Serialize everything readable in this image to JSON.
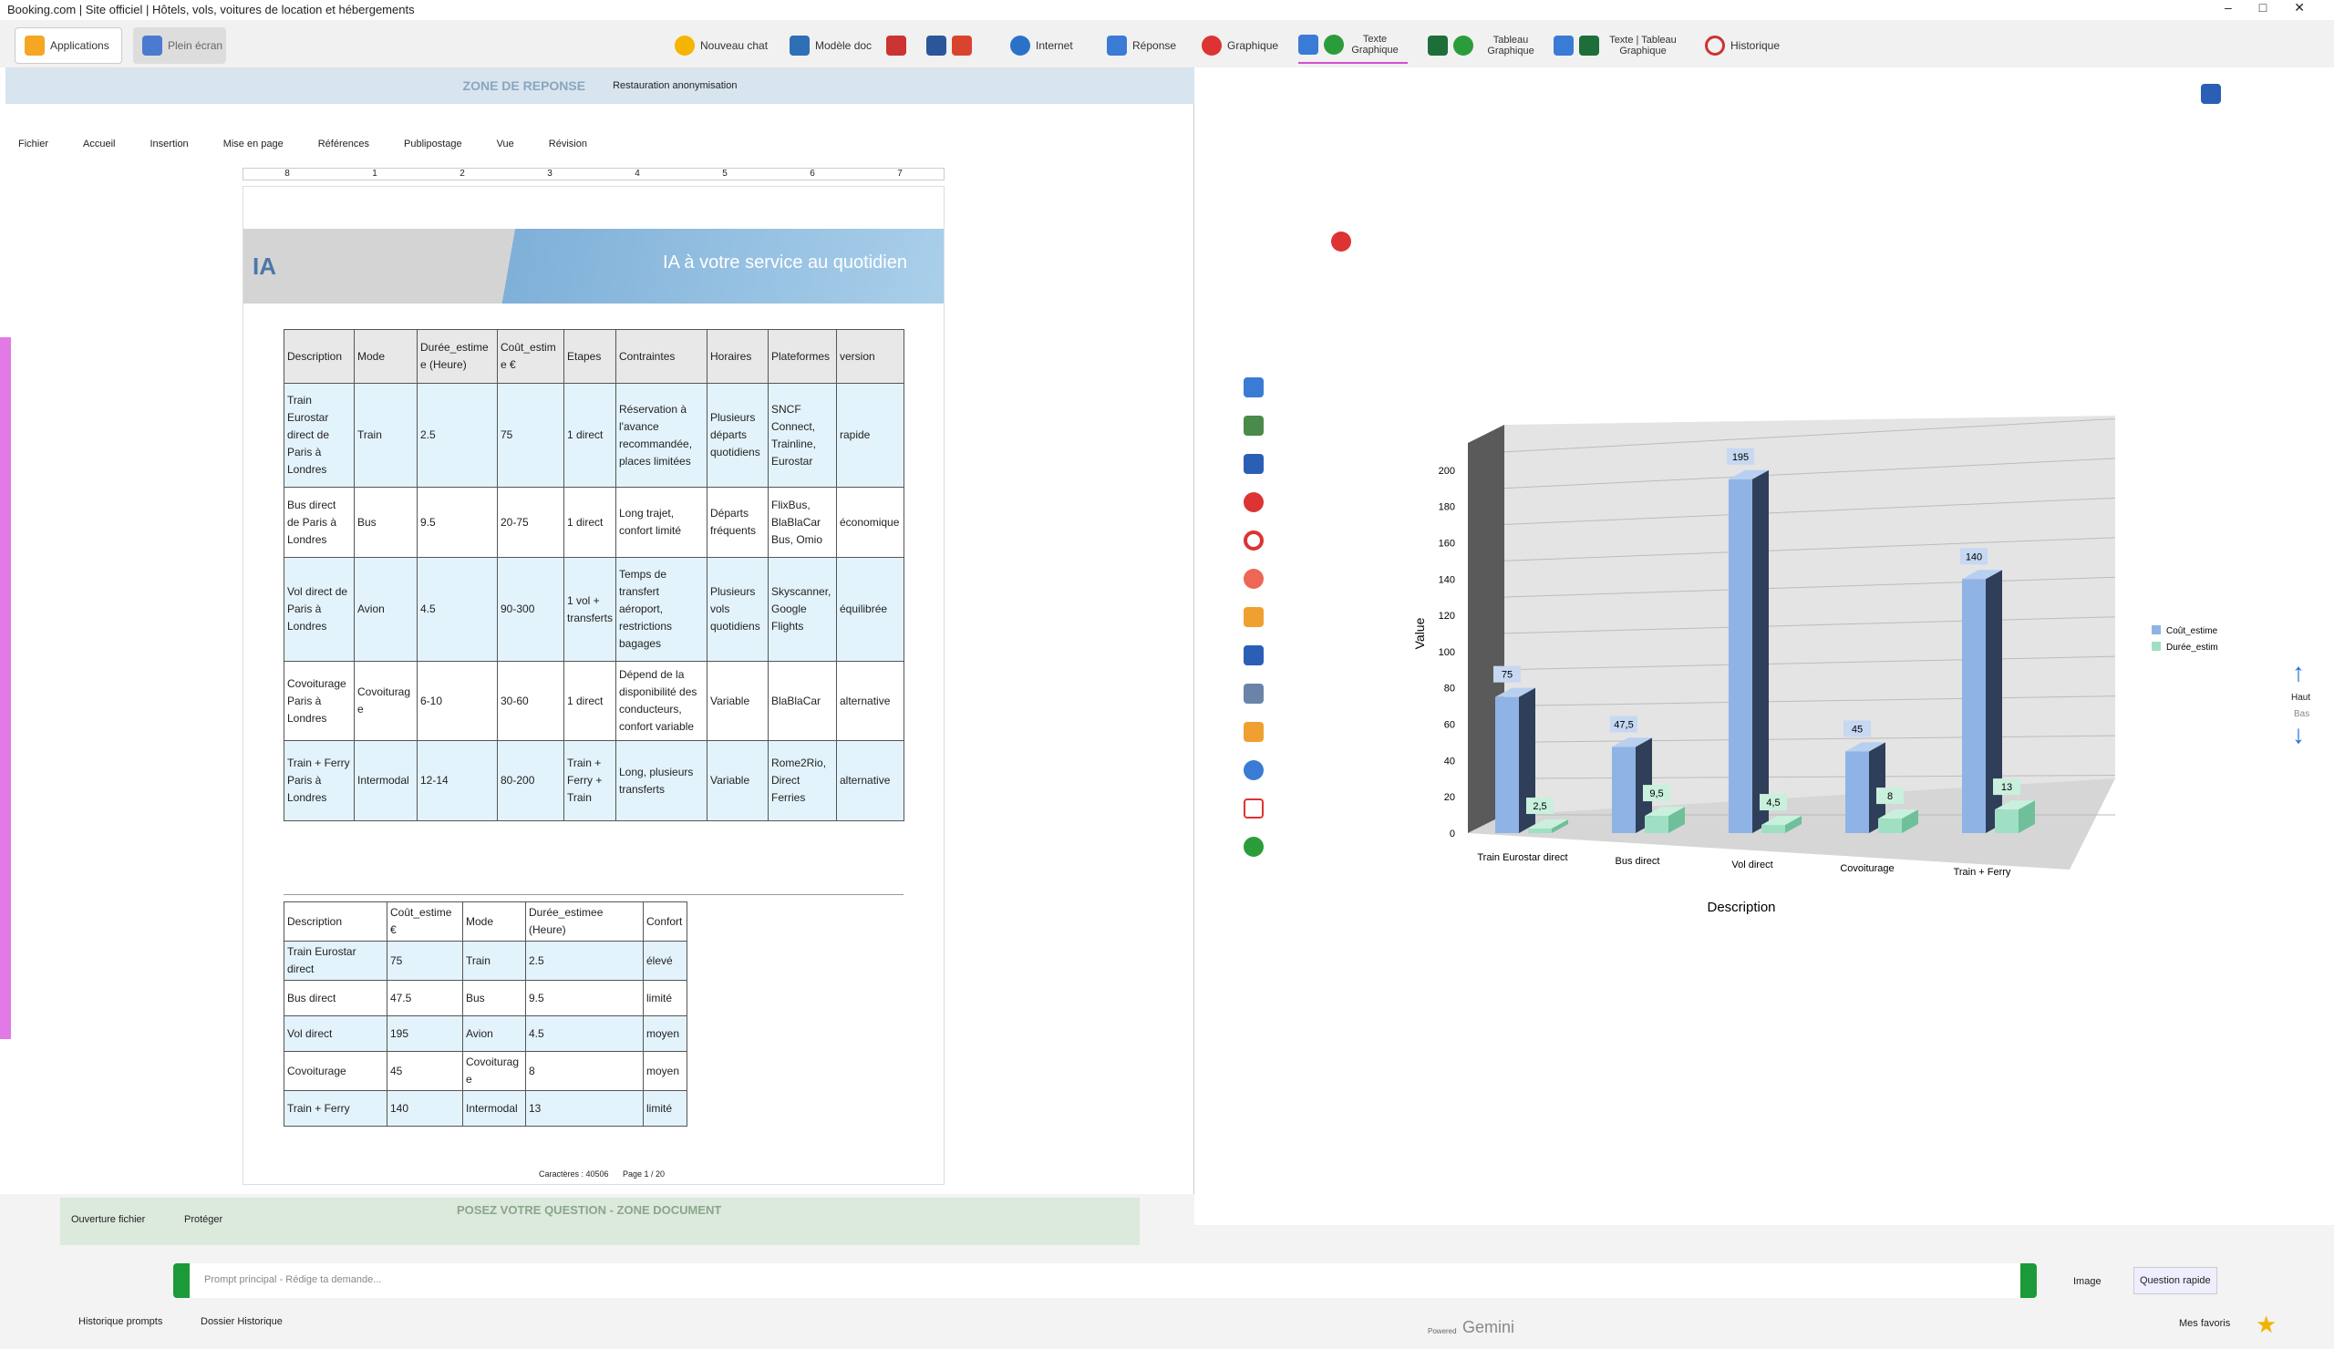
{
  "window_title": "Booking.com | Site officiel | Hôtels, vols, voitures de location et hébergements",
  "toolbar": [
    "Applications",
    "Plein écran",
    "Nouveau chat",
    "Modèle doc",
    "Internet",
    "Réponse",
    "Graphique",
    "Texte Graphique",
    "Tableau Graphique",
    "Texte | Tableau Graphique",
    "Historique"
  ],
  "response_zone": {
    "title": "ZONE DE REPONSE",
    "restore": "Restauration anonymisation"
  },
  "menu": [
    "Fichier",
    "Accueil",
    "Insertion",
    "Mise en page",
    "Références",
    "Publipostage",
    "Vue",
    "Révision"
  ],
  "ruler": [
    "8",
    "1",
    "2",
    "3",
    "4",
    "5",
    "6",
    "7"
  ],
  "document": {
    "logo": "IA",
    "banner": "IA à votre service au quotidien",
    "table1": {
      "header": [
        "Description",
        "Mode",
        "Durée_estimee (Heure)",
        "Coût_estime €",
        "Etapes",
        "Contraintes",
        "Horaires",
        "Plateformes",
        "version"
      ],
      "rows": [
        [
          "Train Eurostar direct de Paris à Londres",
          "Train",
          "2.5",
          "75",
          "1 direct",
          "Réservation à l'avance recommandée, places limitées",
          "Plusieurs départs quotidiens",
          "SNCF Connect, Trainline, Eurostar",
          "rapide"
        ],
        [
          "Bus direct de Paris à Londres",
          "Bus",
          "9.5",
          "20-75",
          "1 direct",
          "Long trajet, confort limité",
          "Départs fréquents",
          "FlixBus, BlaBlaCar Bus, Omio",
          "économique"
        ],
        [
          "Vol direct de Paris à Londres",
          "Avion",
          "4.5",
          "90-300",
          "1 vol + transferts",
          "Temps de transfert aéroport, restrictions bagages",
          "Plusieurs vols quotidiens",
          "Skyscanner, Google Flights",
          "équilibrée"
        ],
        [
          "Covoiturage Paris à Londres",
          "Covoiturage",
          "6-10",
          "30-60",
          "1 direct",
          "Dépend de la disponibilité des conducteurs, confort variable",
          "Variable",
          "BlaBlaCar",
          "alternative"
        ],
        [
          "Train + Ferry Paris à Londres",
          "Intermodal",
          "12-14",
          "80-200",
          "Train + Ferry + Train",
          "Long, plusieurs transferts",
          "Variable",
          "Rome2Rio, Direct Ferries",
          "alternative"
        ]
      ]
    },
    "table2": {
      "header": [
        "Description",
        "Coût_estime €",
        "Mode",
        "Durée_estimee (Heure)",
        "Confort"
      ],
      "rows": [
        [
          "Train Eurostar direct",
          "75",
          "Train",
          "2.5",
          "élevé"
        ],
        [
          "Bus direct",
          "47.5",
          "Bus",
          "9.5",
          "limité"
        ],
        [
          "Vol direct",
          "195",
          "Avion",
          "4.5",
          "moyen"
        ],
        [
          "Covoiturage",
          "45",
          "Covoiturage",
          "8",
          "moyen"
        ],
        [
          "Train + Ferry",
          "140",
          "Intermodal",
          "13",
          "limité"
        ]
      ]
    },
    "footer": {
      "chars": "Caractères : 40506",
      "page": "Page 1 / 20"
    }
  },
  "chart_data": {
    "type": "bar",
    "x_label": "Description",
    "y_label": "Value",
    "categories": [
      "Train Eurostar direct",
      "Bus direct",
      "Vol direct",
      "Covoiturage",
      "Train + Ferry"
    ],
    "series": [
      {
        "name": "Coût_estime",
        "color": "#8fb3e4",
        "values": [
          75,
          47.5,
          195,
          45,
          140
        ],
        "value_labels": [
          "75",
          "47,5",
          "195",
          "45",
          "140"
        ]
      },
      {
        "name": "Durée_estim",
        "color": "#9fe0c4",
        "values": [
          2.5,
          9.5,
          4.5,
          8,
          13
        ],
        "value_labels": [
          "2,5",
          "9,5",
          "4,5",
          "8",
          "13"
        ]
      }
    ],
    "ylim": [
      0,
      220
    ],
    "yticks": [
      0,
      20,
      40,
      60,
      80,
      100,
      120,
      140,
      160,
      180,
      200
    ],
    "grid": true,
    "legend": "right"
  },
  "side": {
    "up": "Haut",
    "down": "Bas"
  },
  "question_zone": {
    "title": "POSEZ VOTRE QUESTION - ZONE DOCUMENT",
    "open": "Ouverture fichier",
    "protect": "Protéger"
  },
  "prompt": {
    "placeholder": "Prompt principal - Rédige ta demande...",
    "image": "Image",
    "quick": "Question rapide"
  },
  "footer_bar": {
    "history": "Historique prompts",
    "folder": "Dossier Historique",
    "favorites": "Mes favoris",
    "powered": "Powered",
    "brand": "Gemini"
  }
}
